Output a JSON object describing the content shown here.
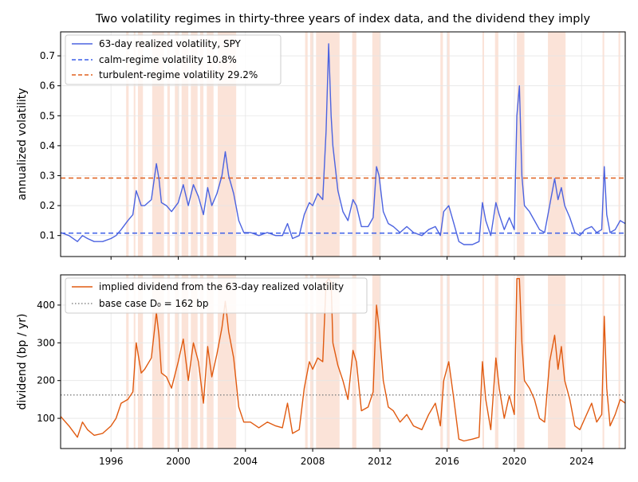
{
  "title": "Two volatility regimes in thirty-three years of index data, and the dividend they imply",
  "colors": {
    "vol_line": "#4c63e0",
    "calm": "#3a5ee8",
    "turbulent": "#e0601e",
    "dividend": "#e05a10",
    "base": "#888888",
    "regime_shade": "#fbe3d8",
    "grid": "#e6e6e6"
  },
  "chart_data": [
    {
      "type": "line",
      "ylabel": "annualized volatility",
      "xlim": [
        1993.0,
        2026.6
      ],
      "ylim": [
        0.03,
        0.78
      ],
      "yticks": [
        0.1,
        0.2,
        0.3,
        0.4,
        0.5,
        0.6,
        0.7
      ],
      "ytick_labels": [
        "0.1",
        "0.2",
        "0.3",
        "0.4",
        "0.5",
        "0.6",
        "0.7"
      ],
      "grid": true,
      "legend_position": "top-left",
      "legend": [
        "63-day realized volatility, SPY",
        "calm-regime volatility 10.8%",
        "turbulent-regime volatility 29.2%"
      ],
      "hlines": [
        {
          "name": "calm-regime volatility 10.8%",
          "value": 0.108,
          "style": "dashed"
        },
        {
          "name": "turbulent-regime volatility 29.2%",
          "value": 0.292,
          "style": "dashed"
        }
      ],
      "series": [
        {
          "name": "63-day realized volatility, SPY",
          "x": [
            1993.0,
            1993.5,
            1994.0,
            1994.3,
            1994.6,
            1995.0,
            1995.5,
            1996.0,
            1996.3,
            1996.6,
            1997.0,
            1997.3,
            1997.5,
            1997.8,
            1998.0,
            1998.4,
            1998.7,
            1998.85,
            1999.0,
            1999.3,
            1999.6,
            2000.0,
            2000.3,
            2000.6,
            2000.9,
            2001.2,
            2001.5,
            2001.75,
            2002.0,
            2002.3,
            2002.6,
            2002.8,
            2003.0,
            2003.3,
            2003.6,
            2003.9,
            2004.3,
            2004.8,
            2005.3,
            2005.8,
            2006.2,
            2006.5,
            2006.8,
            2007.2,
            2007.5,
            2007.8,
            2008.0,
            2008.3,
            2008.6,
            2008.8,
            2008.95,
            2009.1,
            2009.2,
            2009.3,
            2009.5,
            2009.8,
            2010.1,
            2010.4,
            2010.6,
            2010.9,
            2011.3,
            2011.6,
            2011.8,
            2011.95,
            2012.2,
            2012.5,
            2012.8,
            2013.2,
            2013.6,
            2014.0,
            2014.5,
            2014.9,
            2015.3,
            2015.6,
            2015.8,
            2016.1,
            2016.4,
            2016.7,
            2017.0,
            2017.5,
            2017.9,
            2018.1,
            2018.3,
            2018.6,
            2018.9,
            2019.1,
            2019.4,
            2019.7,
            2020.0,
            2020.15,
            2020.3,
            2020.45,
            2020.6,
            2020.9,
            2021.2,
            2021.5,
            2021.8,
            2022.1,
            2022.4,
            2022.6,
            2022.8,
            2023.0,
            2023.3,
            2023.6,
            2023.9,
            2024.2,
            2024.6,
            2024.9,
            2025.2,
            2025.35,
            2025.5,
            2025.7,
            2026.0,
            2026.3,
            2026.6
          ],
          "y": [
            0.11,
            0.1,
            0.08,
            0.1,
            0.09,
            0.08,
            0.08,
            0.09,
            0.1,
            0.12,
            0.15,
            0.17,
            0.25,
            0.2,
            0.2,
            0.22,
            0.34,
            0.29,
            0.21,
            0.2,
            0.18,
            0.21,
            0.27,
            0.2,
            0.27,
            0.23,
            0.17,
            0.26,
            0.2,
            0.24,
            0.3,
            0.38,
            0.3,
            0.24,
            0.15,
            0.11,
            0.11,
            0.1,
            0.11,
            0.1,
            0.1,
            0.14,
            0.09,
            0.1,
            0.17,
            0.21,
            0.2,
            0.24,
            0.22,
            0.45,
            0.74,
            0.5,
            0.4,
            0.35,
            0.25,
            0.18,
            0.15,
            0.22,
            0.2,
            0.13,
            0.13,
            0.16,
            0.33,
            0.3,
            0.18,
            0.14,
            0.13,
            0.11,
            0.13,
            0.11,
            0.1,
            0.12,
            0.13,
            0.1,
            0.18,
            0.2,
            0.14,
            0.08,
            0.07,
            0.07,
            0.08,
            0.21,
            0.15,
            0.1,
            0.21,
            0.17,
            0.12,
            0.16,
            0.12,
            0.5,
            0.6,
            0.3,
            0.2,
            0.18,
            0.15,
            0.12,
            0.11,
            0.2,
            0.29,
            0.22,
            0.26,
            0.2,
            0.16,
            0.11,
            0.1,
            0.12,
            0.13,
            0.11,
            0.12,
            0.33,
            0.17,
            0.11,
            0.12,
            0.15,
            0.14
          ]
        }
      ]
    },
    {
      "type": "line",
      "ylabel": "dividend (bp / yr)",
      "xlim": [
        1993.0,
        2026.6
      ],
      "ylim": [
        20,
        480
      ],
      "yticks": [
        100,
        200,
        300,
        400
      ],
      "ytick_labels": [
        "100",
        "200",
        "300",
        "400"
      ],
      "xticks": [
        1996,
        2000,
        2004,
        2008,
        2012,
        2016,
        2020,
        2024
      ],
      "xtick_labels": [
        "1996",
        "2000",
        "2004",
        "2008",
        "2012",
        "2016",
        "2020",
        "2024"
      ],
      "grid": true,
      "legend_position": "top-left",
      "legend": [
        "implied dividend from the 63-day realized volatility",
        "base case D₀ = 162 bp"
      ],
      "hlines": [
        {
          "name": "base case D₀ = 162 bp",
          "value": 162,
          "style": "dotted"
        }
      ],
      "series": [
        {
          "name": "implied dividend from the 63-day realized volatility",
          "x": [
            1993.0,
            1993.5,
            1994.0,
            1994.3,
            1994.6,
            1995.0,
            1995.5,
            1996.0,
            1996.3,
            1996.6,
            1997.0,
            1997.3,
            1997.5,
            1997.8,
            1998.0,
            1998.4,
            1998.7,
            1998.85,
            1999.0,
            1999.3,
            1999.6,
            2000.0,
            2000.3,
            2000.6,
            2000.9,
            2001.2,
            2001.5,
            2001.75,
            2002.0,
            2002.3,
            2002.6,
            2002.8,
            2003.0,
            2003.3,
            2003.6,
            2003.9,
            2004.3,
            2004.8,
            2005.3,
            2005.8,
            2006.2,
            2006.5,
            2006.8,
            2007.2,
            2007.5,
            2007.8,
            2008.0,
            2008.3,
            2008.6,
            2008.8,
            2008.95,
            2009.1,
            2009.2,
            2009.3,
            2009.5,
            2009.8,
            2010.1,
            2010.4,
            2010.6,
            2010.9,
            2011.3,
            2011.6,
            2011.8,
            2011.95,
            2012.2,
            2012.5,
            2012.8,
            2013.2,
            2013.6,
            2014.0,
            2014.5,
            2014.9,
            2015.3,
            2015.6,
            2015.8,
            2016.1,
            2016.4,
            2016.7,
            2017.0,
            2017.5,
            2017.9,
            2018.1,
            2018.3,
            2018.6,
            2018.9,
            2019.1,
            2019.4,
            2019.7,
            2020.0,
            2020.15,
            2020.3,
            2020.45,
            2020.6,
            2020.9,
            2021.2,
            2021.5,
            2021.8,
            2022.1,
            2022.4,
            2022.6,
            2022.8,
            2023.0,
            2023.3,
            2023.6,
            2023.9,
            2024.2,
            2024.6,
            2024.9,
            2025.2,
            2025.35,
            2025.5,
            2025.7,
            2026.0,
            2026.3,
            2026.6
          ],
          "y": [
            105,
            80,
            50,
            90,
            70,
            55,
            60,
            80,
            100,
            140,
            150,
            170,
            300,
            220,
            230,
            260,
            380,
            320,
            220,
            210,
            180,
            250,
            310,
            200,
            300,
            250,
            140,
            290,
            210,
            270,
            340,
            410,
            330,
            260,
            130,
            90,
            90,
            75,
            90,
            80,
            75,
            140,
            60,
            70,
            180,
            250,
            230,
            260,
            250,
            460,
            470,
            460,
            300,
            280,
            240,
            200,
            150,
            280,
            250,
            120,
            130,
            170,
            400,
            340,
            200,
            130,
            120,
            90,
            110,
            80,
            70,
            110,
            140,
            80,
            200,
            250,
            150,
            45,
            40,
            45,
            50,
            250,
            150,
            70,
            260,
            180,
            100,
            160,
            110,
            470,
            470,
            300,
            200,
            180,
            150,
            100,
            90,
            250,
            320,
            230,
            290,
            200,
            150,
            80,
            70,
            100,
            140,
            90,
            110,
            370,
            180,
            80,
            110,
            150,
            140
          ]
        }
      ]
    }
  ],
  "regime_periods": [
    [
      1996.9,
      1997.05
    ],
    [
      1997.35,
      1997.45
    ],
    [
      1997.6,
      1997.9
    ],
    [
      1998.45,
      1999.15
    ],
    [
      1999.35,
      1999.5
    ],
    [
      1999.8,
      2000.05
    ],
    [
      2000.2,
      2000.6
    ],
    [
      2000.75,
      2001.15
    ],
    [
      2001.3,
      2001.5
    ],
    [
      2001.7,
      2002.1
    ],
    [
      2002.35,
      2003.45
    ],
    [
      2007.55,
      2007.7
    ],
    [
      2007.85,
      2008.05
    ],
    [
      2008.2,
      2009.6
    ],
    [
      2010.35,
      2010.6
    ],
    [
      2011.55,
      2012.05
    ],
    [
      2015.6,
      2015.75
    ],
    [
      2016.0,
      2016.15
    ],
    [
      2018.1,
      2018.2
    ],
    [
      2018.85,
      2019.05
    ],
    [
      2020.15,
      2020.6
    ],
    [
      2022.0,
      2023.05
    ],
    [
      2025.25,
      2025.35
    ],
    [
      2026.2,
      2026.3
    ]
  ]
}
